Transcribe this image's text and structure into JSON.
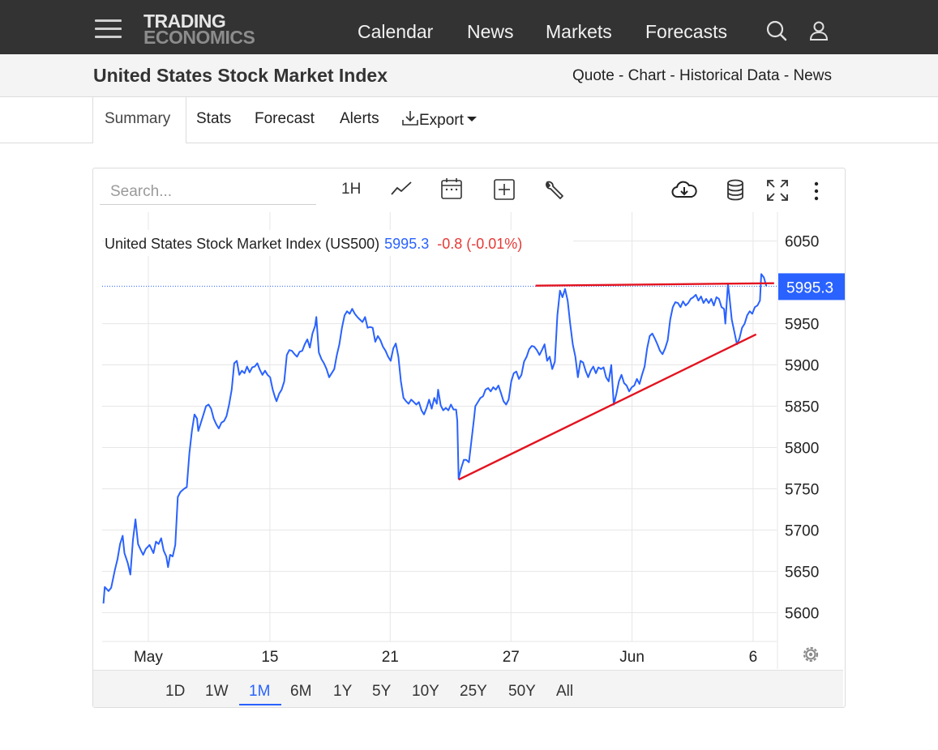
{
  "header": {
    "logo_line1": "TRADING",
    "logo_line2": "ECONOMICS",
    "nav": [
      "Calendar",
      "News",
      "Markets",
      "Forecasts"
    ],
    "icons": [
      "menu-icon",
      "search-icon",
      "user-icon"
    ]
  },
  "page": {
    "title": "United States Stock Market Index",
    "links": [
      "Quote",
      "Chart",
      "Historical Data",
      "News"
    ],
    "link_separator": " - "
  },
  "tabs": {
    "items": [
      "Summary",
      "Stats",
      "Forecast",
      "Alerts"
    ],
    "export_label": "Export",
    "active": "Summary"
  },
  "toolbar": {
    "search_placeholder": "Search...",
    "interval": "1H",
    "icons": [
      "line-chart-icon",
      "calendar-icon",
      "add-indicator-icon",
      "wrench-icon",
      "cloud-download-icon",
      "database-icon",
      "fullscreen-icon",
      "more-vertical-icon"
    ]
  },
  "ranges": {
    "items": [
      "1D",
      "1W",
      "1M",
      "6M",
      "1Y",
      "5Y",
      "10Y",
      "25Y",
      "50Y",
      "All"
    ],
    "active": "1M"
  },
  "colors": {
    "line": "#2962ff",
    "trendline": "#e3131f",
    "negative": "#e53935",
    "topbar": "#333333",
    "accent": "#2962ff"
  },
  "chart_data": {
    "type": "line",
    "legend": {
      "name": "United States Stock Market Index (US500)",
      "value": "5995.3",
      "change": "-0.8 (-0.01%)"
    },
    "last_value_label": "5995.3",
    "last_value": 5995.3,
    "ylim": [
      5565,
      6085
    ],
    "yticks": [
      5600,
      5650,
      5700,
      5750,
      5800,
      5850,
      5900,
      5950,
      6050
    ],
    "xticks": [
      {
        "label": "May",
        "t": 4.5
      },
      {
        "label": "15",
        "t": 51.9
      },
      {
        "label": "21",
        "t": 98.8
      },
      {
        "label": "27",
        "t": 145.9
      },
      {
        "label": "Jun",
        "t": 193.1
      },
      {
        "label": "6",
        "t": 240.3
      }
    ],
    "xlim": [
      -13.5,
      249.5
    ],
    "x_unit": "hourly bars",
    "series": [
      {
        "values": [
          [
            -13,
            5611
          ],
          [
            -12.5,
            5631
          ],
          [
            -11,
            5626
          ],
          [
            -10,
            5630
          ],
          [
            -8.5,
            5652
          ],
          [
            -7.5,
            5665
          ],
          [
            -6.5,
            5683
          ],
          [
            -5.5,
            5693
          ],
          [
            -4.8,
            5672
          ],
          [
            -3.5,
            5660
          ],
          [
            -2.5,
            5646
          ],
          [
            -1.5,
            5688
          ],
          [
            -0.5,
            5713
          ],
          [
            0.5,
            5683
          ],
          [
            1.5,
            5676
          ],
          [
            2.5,
            5670
          ],
          [
            3.5,
            5677
          ],
          [
            5,
            5682
          ],
          [
            6.5,
            5672
          ],
          [
            7.5,
            5686
          ],
          [
            8.5,
            5683
          ],
          [
            9.5,
            5690
          ],
          [
            10.5,
            5675
          ],
          [
            11.5,
            5668
          ],
          [
            12.2,
            5655
          ],
          [
            13,
            5670
          ],
          [
            14,
            5668
          ],
          [
            15,
            5682
          ],
          [
            16,
            5740
          ],
          [
            17,
            5746
          ],
          [
            18.5,
            5750
          ],
          [
            19.5,
            5752
          ],
          [
            20.5,
            5793
          ],
          [
            21.5,
            5820
          ],
          [
            22.5,
            5840
          ],
          [
            23.5,
            5835
          ],
          [
            24,
            5820
          ],
          [
            25,
            5830
          ],
          [
            26,
            5840
          ],
          [
            27,
            5850
          ],
          [
            28,
            5852
          ],
          [
            29,
            5847
          ],
          [
            30,
            5835
          ],
          [
            31,
            5828
          ],
          [
            32,
            5823
          ],
          [
            33,
            5830
          ],
          [
            34,
            5832
          ],
          [
            35,
            5838
          ],
          [
            36,
            5852
          ],
          [
            37,
            5870
          ],
          [
            38,
            5902
          ],
          [
            39,
            5905
          ],
          [
            40,
            5888
          ],
          [
            41,
            5893
          ],
          [
            42,
            5890
          ],
          [
            43,
            5898
          ],
          [
            44,
            5891
          ],
          [
            45,
            5897
          ],
          [
            46,
            5898
          ],
          [
            47,
            5902
          ],
          [
            48,
            5894
          ],
          [
            49,
            5888
          ],
          [
            50,
            5893
          ],
          [
            51,
            5888
          ],
          [
            52,
            5885
          ],
          [
            53,
            5870
          ],
          [
            54,
            5860
          ],
          [
            54.5,
            5856
          ],
          [
            55.5,
            5865
          ],
          [
            56.5,
            5870
          ],
          [
            57.5,
            5880
          ],
          [
            58.5,
            5912
          ],
          [
            59.5,
            5918
          ],
          [
            60.5,
            5917
          ],
          [
            61.5,
            5913
          ],
          [
            62.5,
            5910
          ],
          [
            63.5,
            5916
          ],
          [
            64.5,
            5917
          ],
          [
            65.5,
            5925
          ],
          [
            66.5,
            5931
          ],
          [
            67.5,
            5921
          ],
          [
            68.5,
            5938
          ],
          [
            69.5,
            5947
          ],
          [
            70,
            5958
          ],
          [
            71,
            5915
          ],
          [
            72,
            5907
          ],
          [
            73,
            5902
          ],
          [
            74,
            5895
          ],
          [
            75,
            5885
          ],
          [
            76,
            5890
          ],
          [
            77,
            5895
          ],
          [
            78,
            5912
          ],
          [
            79,
            5925
          ],
          [
            80,
            5945
          ],
          [
            81,
            5960
          ],
          [
            82,
            5965
          ],
          [
            83,
            5962
          ],
          [
            84,
            5968
          ],
          [
            85,
            5962
          ],
          [
            86,
            5958
          ],
          [
            87,
            5955
          ],
          [
            88,
            5952
          ],
          [
            89,
            5958
          ],
          [
            90,
            5945
          ],
          [
            91,
            5946
          ],
          [
            92,
            5945
          ],
          [
            93,
            5928
          ],
          [
            94,
            5935
          ],
          [
            95,
            5930
          ],
          [
            96,
            5922
          ],
          [
            97,
            5917
          ],
          [
            98,
            5910
          ],
          [
            99,
            5905
          ],
          [
            100,
            5920
          ],
          [
            101,
            5926
          ],
          [
            102,
            5910
          ],
          [
            103,
            5880
          ],
          [
            104,
            5860
          ],
          [
            105,
            5856
          ],
          [
            106,
            5853
          ],
          [
            107,
            5858
          ],
          [
            108,
            5855
          ],
          [
            109,
            5852
          ],
          [
            110,
            5855
          ],
          [
            111,
            5845
          ],
          [
            112,
            5840
          ],
          [
            113,
            5848
          ],
          [
            114,
            5858
          ],
          [
            115,
            5847
          ],
          [
            116,
            5860
          ],
          [
            117,
            5853
          ],
          [
            117.5,
            5870
          ],
          [
            118.5,
            5851
          ],
          [
            119.5,
            5845
          ],
          [
            120.5,
            5848
          ],
          [
            121.5,
            5845
          ],
          [
            122.5,
            5852
          ],
          [
            123.5,
            5846
          ],
          [
            124.5,
            5846
          ],
          [
            125,
            5832
          ],
          [
            125.5,
            5762
          ],
          [
            126.5,
            5775
          ],
          [
            127.5,
            5785
          ],
          [
            128.5,
            5785
          ],
          [
            129.5,
            5782
          ],
          [
            130.5,
            5808
          ],
          [
            131.5,
            5835
          ],
          [
            132,
            5850
          ],
          [
            133,
            5855
          ],
          [
            134,
            5860
          ],
          [
            135,
            5862
          ],
          [
            136,
            5870
          ],
          [
            137,
            5872
          ],
          [
            138,
            5868
          ],
          [
            139,
            5873
          ],
          [
            140,
            5870
          ],
          [
            141,
            5875
          ],
          [
            142,
            5866
          ],
          [
            143,
            5856
          ],
          [
            144,
            5852
          ],
          [
            145,
            5858
          ],
          [
            146,
            5880
          ],
          [
            147,
            5890
          ],
          [
            148,
            5892
          ],
          [
            149,
            5883
          ],
          [
            150,
            5888
          ],
          [
            151,
            5904
          ],
          [
            152,
            5910
          ],
          [
            153,
            5919
          ],
          [
            154,
            5923
          ],
          [
            155,
            5922
          ],
          [
            156,
            5918
          ],
          [
            157,
            5912
          ],
          [
            158,
            5918
          ],
          [
            159,
            5925
          ],
          [
            160,
            5905
          ],
          [
            161,
            5910
          ],
          [
            162,
            5895
          ],
          [
            163,
            5904
          ],
          [
            164,
            5960
          ],
          [
            165,
            5990
          ],
          [
            166,
            5982
          ],
          [
            167,
            5992
          ],
          [
            168,
            5978
          ],
          [
            169,
            5950
          ],
          [
            170,
            5925
          ],
          [
            171,
            5910
          ],
          [
            172,
            5885
          ],
          [
            173,
            5905
          ],
          [
            174,
            5903
          ],
          [
            175,
            5893
          ],
          [
            176,
            5885
          ],
          [
            177,
            5893
          ],
          [
            178,
            5898
          ],
          [
            179,
            5890
          ],
          [
            180,
            5897
          ],
          [
            181,
            5895
          ],
          [
            182,
            5897
          ],
          [
            183,
            5885
          ],
          [
            184,
            5880
          ],
          [
            185,
            5900
          ],
          [
            186,
            5852
          ],
          [
            187,
            5865
          ],
          [
            188,
            5880
          ],
          [
            189,
            5888
          ],
          [
            190,
            5878
          ],
          [
            191,
            5875
          ],
          [
            192,
            5868
          ],
          [
            193,
            5873
          ],
          [
            194,
            5875
          ],
          [
            195,
            5883
          ],
          [
            196,
            5877
          ],
          [
            197,
            5888
          ],
          [
            198,
            5898
          ],
          [
            199,
            5920
          ],
          [
            200,
            5935
          ],
          [
            201,
            5938
          ],
          [
            202,
            5932
          ],
          [
            203,
            5925
          ],
          [
            204,
            5917
          ],
          [
            205,
            5913
          ],
          [
            206,
            5920
          ],
          [
            207,
            5930
          ],
          [
            208,
            5955
          ],
          [
            209,
            5970
          ],
          [
            210,
            5976
          ],
          [
            211,
            5975
          ],
          [
            212,
            5970
          ],
          [
            213,
            5977
          ],
          [
            214,
            5972
          ],
          [
            215,
            5975
          ],
          [
            216,
            5980
          ],
          [
            217,
            5982
          ],
          [
            218,
            5985
          ],
          [
            219,
            5978
          ],
          [
            220,
            5983
          ],
          [
            221,
            5975
          ],
          [
            222,
            5980
          ],
          [
            223,
            5975
          ],
          [
            224,
            5980
          ],
          [
            225,
            5972
          ],
          [
            226,
            5982
          ],
          [
            227,
            5980
          ],
          [
            228,
            5970
          ],
          [
            229,
            5968
          ],
          [
            229.5,
            5950
          ],
          [
            230.5,
            5998
          ],
          [
            231,
            5985
          ],
          [
            232,
            5955
          ],
          [
            233,
            5940
          ],
          [
            234,
            5925
          ],
          [
            235,
            5932
          ],
          [
            236,
            5945
          ],
          [
            237,
            5950
          ],
          [
            238,
            5960
          ],
          [
            239,
            5965
          ],
          [
            240,
            5962
          ],
          [
            241,
            5970
          ],
          [
            242,
            5972
          ],
          [
            243,
            5978
          ],
          [
            243.5,
            6010
          ],
          [
            244.5,
            6006
          ],
          [
            245.5,
            5995.3
          ]
        ]
      }
    ],
    "annotations": [
      {
        "type": "trendline",
        "from": [
          125.5,
          5761
        ],
        "to": [
          241.5,
          5937
        ]
      },
      {
        "type": "trendline",
        "from": [
          155.5,
          5996
        ],
        "to": [
          248.5,
          5999
        ]
      }
    ]
  }
}
